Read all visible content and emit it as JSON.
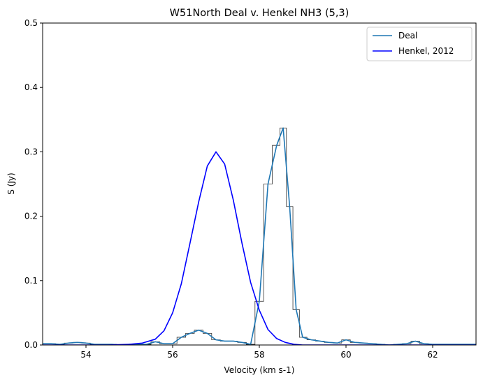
{
  "chart_data": {
    "type": "line",
    "title": "W51North Deal v. Henkel NH3 (5,3)",
    "xlabel": "Velocity (km s-1)",
    "ylabel": "S (Jy)",
    "xlim": [
      53,
      63
    ],
    "ylim": [
      0,
      0.5
    ],
    "xticks": [
      54,
      56,
      58,
      60,
      62
    ],
    "yticks": [
      0.0,
      0.1,
      0.2,
      0.3,
      0.4,
      0.5
    ],
    "grid": false,
    "legend_position": "top-right",
    "series": [
      {
        "name": "Deal",
        "color": "#1f77b4",
        "style": "line with step outline",
        "x": [
          53.0,
          53.2,
          53.4,
          53.6,
          53.8,
          54.0,
          54.2,
          54.4,
          54.6,
          54.8,
          55.0,
          55.2,
          55.4,
          55.6,
          55.8,
          56.0,
          56.2,
          56.4,
          56.6,
          56.8,
          57.0,
          57.2,
          57.4,
          57.6,
          57.8,
          58.0,
          58.2,
          58.4,
          58.55,
          58.7,
          58.85,
          59.0,
          59.2,
          59.4,
          59.6,
          59.8,
          60.0,
          60.2,
          60.4,
          60.6,
          60.8,
          61.0,
          61.2,
          61.4,
          61.6,
          61.8,
          62.0,
          62.2,
          62.4,
          62.6,
          62.8,
          63.0
        ],
        "y": [
          0.002,
          0.002,
          0.001,
          0.003,
          0.004,
          0.003,
          0.001,
          0.001,
          0.001,
          0.0,
          0.001,
          0.001,
          0.001,
          0.005,
          0.002,
          0.002,
          0.012,
          0.018,
          0.023,
          0.018,
          0.008,
          0.006,
          0.006,
          0.004,
          0.001,
          0.068,
          0.25,
          0.31,
          0.337,
          0.215,
          0.055,
          0.012,
          0.008,
          0.006,
          0.004,
          0.003,
          0.008,
          0.004,
          0.003,
          0.002,
          0.001,
          0.0,
          0.001,
          0.002,
          0.006,
          0.002,
          0.001,
          0.001,
          0.001,
          0.001,
          0.001,
          0.001
        ]
      },
      {
        "name": "Henkel, 2012",
        "color": "#0000ff",
        "x": [
          53.0,
          53.5,
          54.0,
          54.5,
          55.0,
          55.3,
          55.6,
          55.8,
          56.0,
          56.2,
          56.4,
          56.6,
          56.8,
          57.0,
          57.2,
          57.4,
          57.6,
          57.8,
          58.0,
          58.2,
          58.4,
          58.6,
          58.8,
          59.0,
          59.3,
          59.6,
          60.0,
          61.0,
          62.0,
          63.0
        ],
        "y": [
          0.0,
          0.0,
          0.0,
          0.0,
          0.001,
          0.003,
          0.009,
          0.022,
          0.05,
          0.095,
          0.158,
          0.222,
          0.278,
          0.3,
          0.281,
          0.225,
          0.158,
          0.097,
          0.054,
          0.024,
          0.01,
          0.004,
          0.001,
          0.0,
          0.0,
          0.0,
          0.0,
          0.0,
          0.0,
          0.0
        ]
      }
    ]
  }
}
